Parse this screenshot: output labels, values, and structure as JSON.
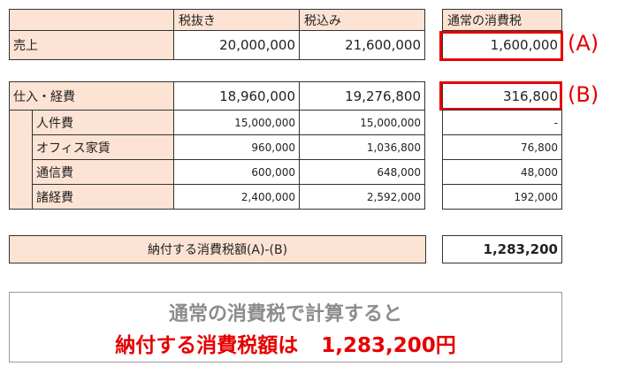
{
  "headers": {
    "tax_excluded": "税抜き",
    "tax_included": "税込み",
    "normal_tax": "通常の消費税"
  },
  "sales": {
    "label": "売上",
    "tax_excluded": "20,000,000",
    "tax_included": "21,600,000",
    "normal_tax": "1,600,000",
    "marker": "(A)"
  },
  "purchases": {
    "label": "仕入・経費",
    "tax_excluded": "18,960,000",
    "tax_included": "19,276,800",
    "normal_tax": "316,800",
    "marker": "(B)",
    "items": [
      {
        "label": "人件費",
        "tax_excluded": "15,000,000",
        "tax_included": "15,000,000",
        "normal_tax": "-"
      },
      {
        "label": "オフィス家賃",
        "tax_excluded": "960,000",
        "tax_included": "1,036,800",
        "normal_tax": "76,800"
      },
      {
        "label": "通信費",
        "tax_excluded": "600,000",
        "tax_included": "648,000",
        "normal_tax": "48,000"
      },
      {
        "label": "諸経費",
        "tax_excluded": "2,400,000",
        "tax_included": "2,592,000",
        "normal_tax": "192,000"
      }
    ]
  },
  "payable": {
    "label": "納付する消費税額(A)-(B)",
    "value": "1,283,200"
  },
  "summary": {
    "line1": "通常の消費税で計算すると",
    "line2_label": "納付する消費税額は",
    "line2_value": "1,283,200円"
  },
  "colors": {
    "header_fill": "#fde3d3",
    "highlight": "#e60000",
    "summary_grey": "#8c8c8c"
  }
}
